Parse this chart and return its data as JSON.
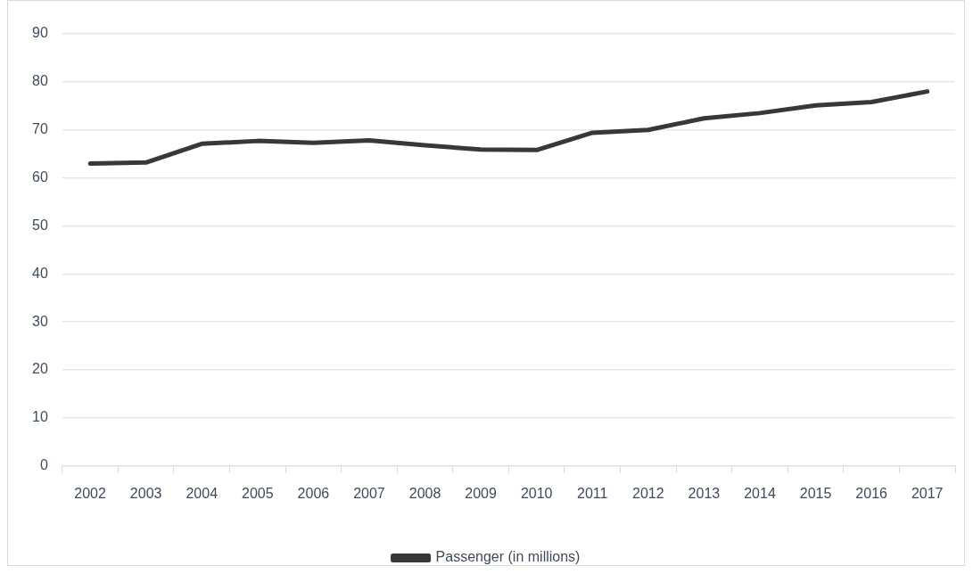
{
  "chart_data": {
    "type": "line",
    "categories": [
      "2002",
      "2003",
      "2004",
      "2005",
      "2006",
      "2007",
      "2008",
      "2009",
      "2010",
      "2011",
      "2012",
      "2013",
      "2014",
      "2015",
      "2016",
      "2017"
    ],
    "series": [
      {
        "name": "Passenger (in millions)",
        "color": "#3a3836",
        "values": [
          63.0,
          63.2,
          67.1,
          67.7,
          67.3,
          67.8,
          66.8,
          65.9,
          65.8,
          69.4,
          70.0,
          72.4,
          73.5,
          75.1,
          75.8,
          78.0
        ]
      }
    ],
    "ylim": [
      0,
      90
    ],
    "yticks": [
      0,
      10,
      20,
      30,
      40,
      50,
      60,
      70,
      80,
      90
    ],
    "grid": "y",
    "legend": "bottom",
    "marker": "none"
  }
}
